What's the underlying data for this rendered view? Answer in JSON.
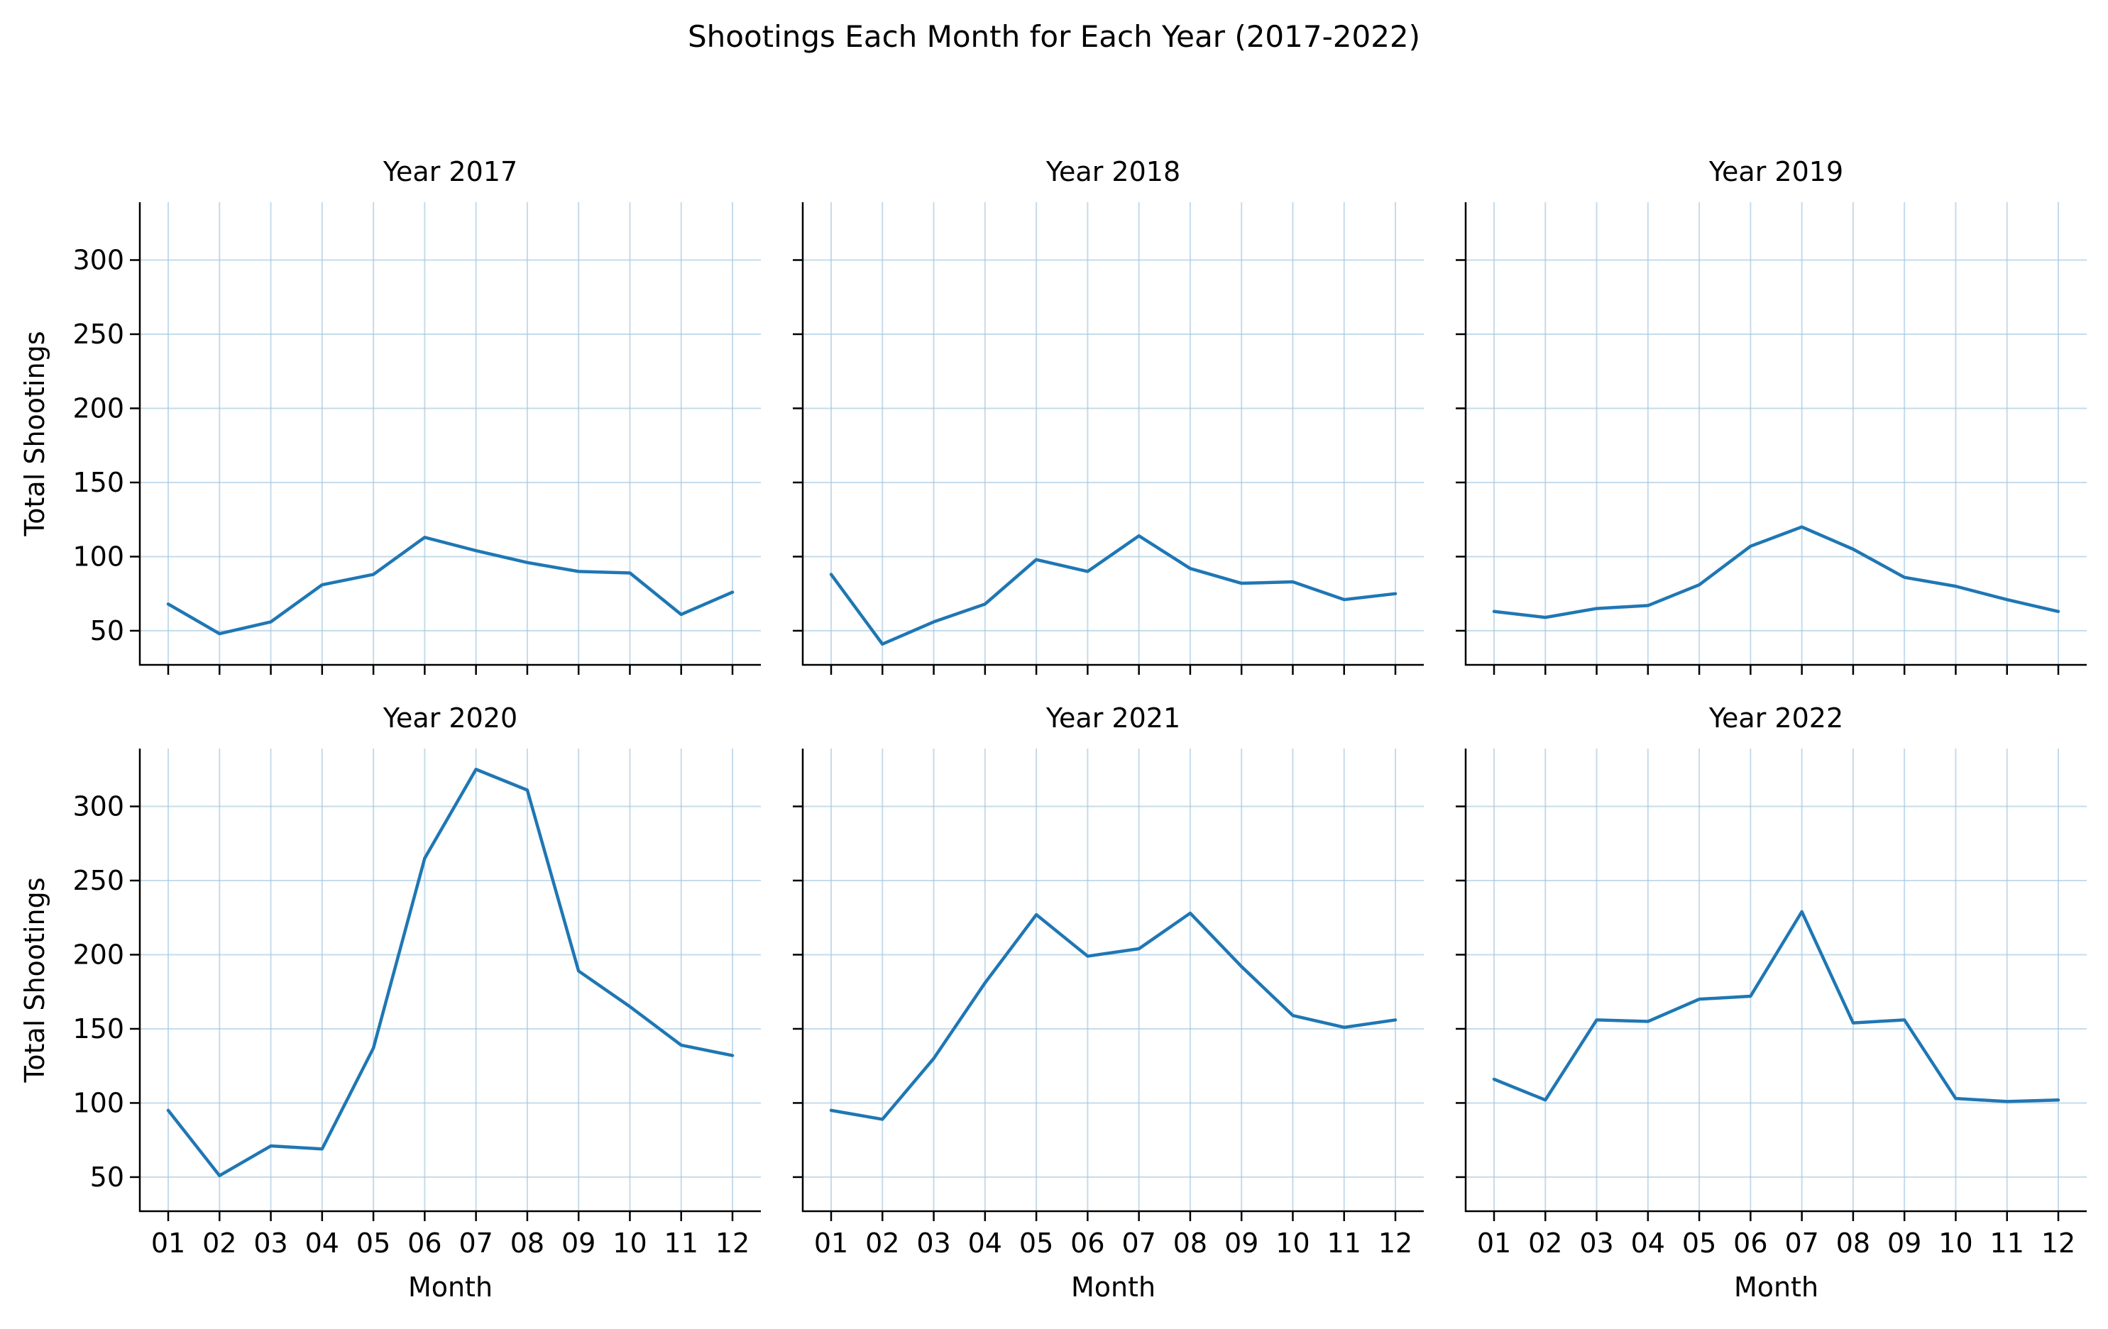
{
  "chart_data": {
    "type": "line",
    "title": "Shootings Each Month for Each Year (2017-2022)",
    "xlabel": "Month",
    "ylabel": "Total Shootings",
    "categories": [
      "01",
      "02",
      "03",
      "04",
      "05",
      "06",
      "07",
      "08",
      "09",
      "10",
      "11",
      "12"
    ],
    "y_ticks": [
      50,
      100,
      150,
      200,
      250,
      300
    ],
    "ylim": [
      27,
      339
    ],
    "grid": true,
    "line_color": "#1f77b4",
    "grid_color": "#a6c8e0",
    "panels": [
      {
        "title": "Year 2017",
        "values": [
          68,
          48,
          56,
          81,
          88,
          113,
          104,
          96,
          90,
          89,
          61,
          76
        ]
      },
      {
        "title": "Year 2018",
        "values": [
          88,
          41,
          56,
          68,
          98,
          90,
          114,
          92,
          82,
          83,
          71,
          75
        ]
      },
      {
        "title": "Year 2019",
        "values": [
          63,
          59,
          65,
          67,
          81,
          107,
          120,
          105,
          86,
          80,
          71,
          63
        ]
      },
      {
        "title": "Year 2020",
        "values": [
          95,
          51,
          71,
          69,
          137,
          265,
          325,
          311,
          189,
          165,
          139,
          132
        ]
      },
      {
        "title": "Year 2021",
        "values": [
          95,
          89,
          130,
          181,
          227,
          199,
          204,
          228,
          192,
          159,
          151,
          156
        ]
      },
      {
        "title": "Year 2022",
        "values": [
          116,
          102,
          156,
          155,
          170,
          172,
          229,
          154,
          156,
          103,
          101,
          102
        ]
      }
    ]
  }
}
